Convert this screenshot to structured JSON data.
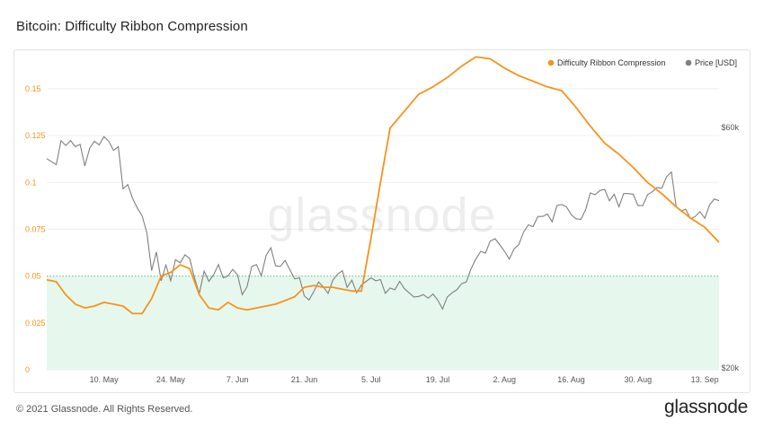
{
  "page": {
    "title": "Bitcoin: Difficulty Ribbon Compression",
    "footer": "© 2021 Glassnode. All Rights Reserved.",
    "brand": "glassnode",
    "watermark": "glassnode"
  },
  "chart_data": {
    "type": "line",
    "title": "Bitcoin: Difficulty Ribbon Compression",
    "legend_position": "top-right",
    "grid": true,
    "x_range": [
      "2021-04-28",
      "2021-09-16"
    ],
    "x_ticks": [
      "10. May",
      "24. May",
      "7. Jun",
      "21. Jun",
      "5. Jul",
      "19. Jul",
      "2. Aug",
      "16. Aug",
      "30. Aug",
      "13. Sep"
    ],
    "y_left": {
      "ticks": [
        "0",
        "0.025",
        "0.05",
        "0.075",
        "0.1",
        "0.125",
        "0.15"
      ],
      "range": [
        0,
        0.16
      ]
    },
    "y_right": {
      "ticks": [
        "$20k",
        "$60k"
      ]
    },
    "threshold": {
      "value": 0.05,
      "shaded_below": true,
      "color": "#e6f7ee"
    },
    "colors": {
      "compression": "#f7931a",
      "price": "#808080",
      "threshold_line": "#66bb88"
    },
    "series": [
      {
        "name": "Difficulty Ribbon Compression",
        "axis": "left",
        "color": "#f7931a",
        "points": [
          [
            "2021-04-28",
            0.048
          ],
          [
            "2021-04-30",
            0.047
          ],
          [
            "2021-05-02",
            0.04
          ],
          [
            "2021-05-04",
            0.035
          ],
          [
            "2021-05-06",
            0.033
          ],
          [
            "2021-05-08",
            0.034
          ],
          [
            "2021-05-10",
            0.036
          ],
          [
            "2021-05-12",
            0.035
          ],
          [
            "2021-05-14",
            0.034
          ],
          [
            "2021-05-16",
            0.03
          ],
          [
            "2021-05-18",
            0.03
          ],
          [
            "2021-05-20",
            0.038
          ],
          [
            "2021-05-22",
            0.05
          ],
          [
            "2021-05-24",
            0.052
          ],
          [
            "2021-05-26",
            0.056
          ],
          [
            "2021-05-28",
            0.054
          ],
          [
            "2021-05-30",
            0.04
          ],
          [
            "2021-06-01",
            0.033
          ],
          [
            "2021-06-03",
            0.032
          ],
          [
            "2021-06-05",
            0.036
          ],
          [
            "2021-06-07",
            0.033
          ],
          [
            "2021-06-09",
            0.032
          ],
          [
            "2021-06-11",
            0.033
          ],
          [
            "2021-06-13",
            0.034
          ],
          [
            "2021-06-15",
            0.035
          ],
          [
            "2021-06-17",
            0.037
          ],
          [
            "2021-06-19",
            0.039
          ],
          [
            "2021-06-21",
            0.044
          ],
          [
            "2021-06-23",
            0.045
          ],
          [
            "2021-06-25",
            0.044
          ],
          [
            "2021-06-27",
            0.044
          ],
          [
            "2021-06-29",
            0.043
          ],
          [
            "2021-07-01",
            0.042
          ],
          [
            "2021-07-03",
            0.042
          ],
          [
            "2021-07-05",
            0.07
          ],
          [
            "2021-07-07",
            0.1
          ],
          [
            "2021-07-09",
            0.129
          ],
          [
            "2021-07-12",
            0.138
          ],
          [
            "2021-07-15",
            0.147
          ],
          [
            "2021-07-18",
            0.151
          ],
          [
            "2021-07-21",
            0.156
          ],
          [
            "2021-07-24",
            0.162
          ],
          [
            "2021-07-27",
            0.167
          ],
          [
            "2021-07-30",
            0.166
          ],
          [
            "2021-08-02",
            0.161
          ],
          [
            "2021-08-05",
            0.157
          ],
          [
            "2021-08-08",
            0.154
          ],
          [
            "2021-08-11",
            0.151
          ],
          [
            "2021-08-14",
            0.149
          ],
          [
            "2021-08-17",
            0.14
          ],
          [
            "2021-08-20",
            0.13
          ],
          [
            "2021-08-23",
            0.121
          ],
          [
            "2021-08-26",
            0.115
          ],
          [
            "2021-08-29",
            0.108
          ],
          [
            "2021-09-01",
            0.1
          ],
          [
            "2021-09-04",
            0.094
          ],
          [
            "2021-09-07",
            0.087
          ],
          [
            "2021-09-10",
            0.081
          ],
          [
            "2021-09-13",
            0.076
          ],
          [
            "2021-09-16",
            0.068
          ]
        ]
      },
      {
        "name": "Price [USD]",
        "axis": "right",
        "color": "#808080",
        "points": [
          [
            "2021-04-28",
            54800
          ],
          [
            "2021-04-30",
            53800
          ],
          [
            "2021-05-01",
            57800
          ],
          [
            "2021-05-02",
            57000
          ],
          [
            "2021-05-03",
            57800
          ],
          [
            "2021-05-04",
            56800
          ],
          [
            "2021-05-05",
            57200
          ],
          [
            "2021-05-06",
            53600
          ],
          [
            "2021-05-07",
            56500
          ],
          [
            "2021-05-08",
            57700
          ],
          [
            "2021-05-09",
            57100
          ],
          [
            "2021-05-10",
            58500
          ],
          [
            "2021-05-11",
            57700
          ],
          [
            "2021-05-12",
            56200
          ],
          [
            "2021-05-13",
            56800
          ],
          [
            "2021-05-14",
            49800
          ],
          [
            "2021-05-15",
            50500
          ],
          [
            "2021-05-16",
            48200
          ],
          [
            "2021-05-17",
            46600
          ],
          [
            "2021-05-18",
            45300
          ],
          [
            "2021-05-19",
            42500
          ],
          [
            "2021-05-20",
            36200
          ],
          [
            "2021-05-21",
            39300
          ],
          [
            "2021-05-22",
            34500
          ],
          [
            "2021-05-23",
            37100
          ],
          [
            "2021-05-24",
            34500
          ],
          [
            "2021-05-25",
            38000
          ],
          [
            "2021-05-26",
            37500
          ],
          [
            "2021-05-27",
            38800
          ],
          [
            "2021-05-28",
            38200
          ],
          [
            "2021-05-29",
            34900
          ],
          [
            "2021-05-30",
            32400
          ],
          [
            "2021-05-31",
            36100
          ],
          [
            "2021-06-01",
            34400
          ],
          [
            "2021-06-02",
            35500
          ],
          [
            "2021-06-03",
            37200
          ],
          [
            "2021-06-04",
            35000
          ],
          [
            "2021-06-05",
            35300
          ],
          [
            "2021-06-06",
            36400
          ],
          [
            "2021-06-07",
            35500
          ],
          [
            "2021-06-08",
            32200
          ],
          [
            "2021-06-09",
            33500
          ],
          [
            "2021-06-10",
            36900
          ],
          [
            "2021-06-11",
            37200
          ],
          [
            "2021-06-12",
            35300
          ],
          [
            "2021-06-13",
            38700
          ],
          [
            "2021-06-14",
            40000
          ],
          [
            "2021-06-15",
            37000
          ],
          [
            "2021-06-16",
            36900
          ],
          [
            "2021-06-17",
            37900
          ],
          [
            "2021-06-18",
            36300
          ],
          [
            "2021-06-19",
            34800
          ],
          [
            "2021-06-20",
            35000
          ],
          [
            "2021-06-21",
            32000
          ],
          [
            "2021-06-22",
            31300
          ],
          [
            "2021-06-23",
            32700
          ],
          [
            "2021-06-24",
            34300
          ],
          [
            "2021-06-25",
            33500
          ],
          [
            "2021-06-26",
            32400
          ],
          [
            "2021-06-27",
            34600
          ],
          [
            "2021-06-28",
            35600
          ],
          [
            "2021-06-29",
            36200
          ],
          [
            "2021-06-30",
            33400
          ],
          [
            "2021-07-01",
            34600
          ],
          [
            "2021-07-02",
            32500
          ],
          [
            "2021-07-03",
            33800
          ],
          [
            "2021-07-04",
            34400
          ],
          [
            "2021-07-05",
            35000
          ],
          [
            "2021-07-06",
            34500
          ],
          [
            "2021-07-07",
            34700
          ],
          [
            "2021-07-08",
            32400
          ],
          [
            "2021-07-09",
            33300
          ],
          [
            "2021-07-10",
            33000
          ],
          [
            "2021-07-11",
            34400
          ],
          [
            "2021-07-12",
            33200
          ],
          [
            "2021-07-13",
            32500
          ],
          [
            "2021-07-14",
            31800
          ],
          [
            "2021-07-15",
            31900
          ],
          [
            "2021-07-16",
            32200
          ],
          [
            "2021-07-17",
            31600
          ],
          [
            "2021-07-18",
            32300
          ],
          [
            "2021-07-19",
            31300
          ],
          [
            "2021-07-20",
            29800
          ],
          [
            "2021-07-21",
            31800
          ],
          [
            "2021-07-22",
            32500
          ],
          [
            "2021-07-23",
            33000
          ],
          [
            "2021-07-24",
            34000
          ],
          [
            "2021-07-25",
            34300
          ],
          [
            "2021-07-26",
            36500
          ],
          [
            "2021-07-27",
            38100
          ],
          [
            "2021-07-28",
            39400
          ],
          [
            "2021-07-29",
            39100
          ],
          [
            "2021-07-30",
            41100
          ],
          [
            "2021-07-31",
            41500
          ],
          [
            "2021-08-01",
            40500
          ],
          [
            "2021-08-02",
            39400
          ],
          [
            "2021-08-03",
            38100
          ],
          [
            "2021-08-04",
            39800
          ],
          [
            "2021-08-05",
            40500
          ],
          [
            "2021-08-06",
            42600
          ],
          [
            "2021-08-07",
            43800
          ],
          [
            "2021-08-08",
            43500
          ],
          [
            "2021-08-09",
            45200
          ],
          [
            "2021-08-10",
            45200
          ],
          [
            "2021-08-11",
            45600
          ],
          [
            "2021-08-12",
            44300
          ],
          [
            "2021-08-13",
            47000
          ],
          [
            "2021-08-14",
            47200
          ],
          [
            "2021-08-15",
            46800
          ],
          [
            "2021-08-16",
            45500
          ],
          [
            "2021-08-17",
            44800
          ],
          [
            "2021-08-18",
            44700
          ],
          [
            "2021-08-19",
            46300
          ],
          [
            "2021-08-20",
            49100
          ],
          [
            "2021-08-21",
            48800
          ],
          [
            "2021-08-22",
            49500
          ],
          [
            "2021-08-23",
            49700
          ],
          [
            "2021-08-24",
            47800
          ],
          [
            "2021-08-25",
            48900
          ],
          [
            "2021-08-26",
            46800
          ],
          [
            "2021-08-27",
            49000
          ],
          [
            "2021-08-28",
            49000
          ],
          [
            "2021-08-29",
            48900
          ],
          [
            "2021-08-30",
            47000
          ],
          [
            "2021-08-31",
            47000
          ],
          [
            "2021-09-01",
            48800
          ],
          [
            "2021-09-02",
            49300
          ],
          [
            "2021-09-03",
            50000
          ],
          [
            "2021-09-04",
            49900
          ],
          [
            "2021-09-05",
            51800
          ],
          [
            "2021-09-06",
            52600
          ],
          [
            "2021-09-07",
            46800
          ],
          [
            "2021-09-08",
            46100
          ],
          [
            "2021-09-09",
            46400
          ],
          [
            "2021-09-10",
            44800
          ],
          [
            "2021-09-11",
            45200
          ],
          [
            "2021-09-12",
            46000
          ],
          [
            "2021-09-13",
            44900
          ],
          [
            "2021-09-14",
            47100
          ],
          [
            "2021-09-15",
            48100
          ],
          [
            "2021-09-16",
            47800
          ]
        ]
      }
    ]
  }
}
